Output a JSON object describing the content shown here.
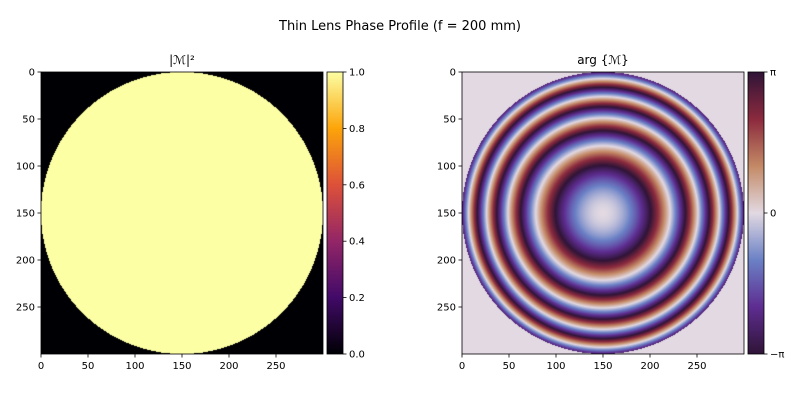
{
  "figure": {
    "title": "Thin Lens Phase Profile (f = 200 mm)"
  },
  "chart_data": [
    {
      "type": "heatmap",
      "title": "|ℳ|²",
      "quantity": "intensity",
      "grid": [
        300,
        300
      ],
      "aperture_center": [
        150,
        150
      ],
      "aperture_radius": 150,
      "value_inside": 1.0,
      "value_outside": 0.0,
      "xticks": [
        "0",
        "50",
        "100",
        "150",
        "200",
        "250"
      ],
      "yticks": [
        "0",
        "50",
        "100",
        "150",
        "200",
        "250"
      ],
      "xlim": [
        0,
        300
      ],
      "ylim": [
        300,
        0
      ],
      "colormap": "inferno",
      "colormap_stops": [
        "#000004",
        "#420a68",
        "#932667",
        "#dd513a",
        "#fca50a",
        "#fcffa4"
      ],
      "colorbar": {
        "range": [
          0.0,
          1.0
        ],
        "tick_values": [
          0.0,
          0.2,
          0.4,
          0.6,
          0.8,
          1.0
        ],
        "tick_labels": [
          "0.0",
          "0.2",
          "0.4",
          "0.6",
          "0.8",
          "1.0"
        ]
      }
    },
    {
      "type": "heatmap",
      "title": "arg {ℳ}",
      "quantity": "phase",
      "grid": [
        300,
        300
      ],
      "aperture_center": [
        150,
        150
      ],
      "aperture_radius": 150,
      "phase_coefficient": 0.00123,
      "value_outside": 0.0,
      "xticks": [
        "0",
        "50",
        "100",
        "150",
        "200",
        "250"
      ],
      "yticks": [
        "0",
        "50",
        "100",
        "150",
        "200",
        "250"
      ],
      "xlim": [
        0,
        300
      ],
      "ylim": [
        300,
        0
      ],
      "colormap": "twilight_shifted",
      "colormap_stops": [
        "#301437",
        "#5e2d91",
        "#6b81c6",
        "#e2d9e2",
        "#c48a66",
        "#8c2a3e",
        "#301437"
      ],
      "colorbar": {
        "range": [
          -3.14159,
          3.14159
        ],
        "tick_values": [
          -3.14159,
          0,
          3.14159
        ],
        "tick_labels": [
          "−π",
          "0",
          "π"
        ]
      }
    }
  ]
}
